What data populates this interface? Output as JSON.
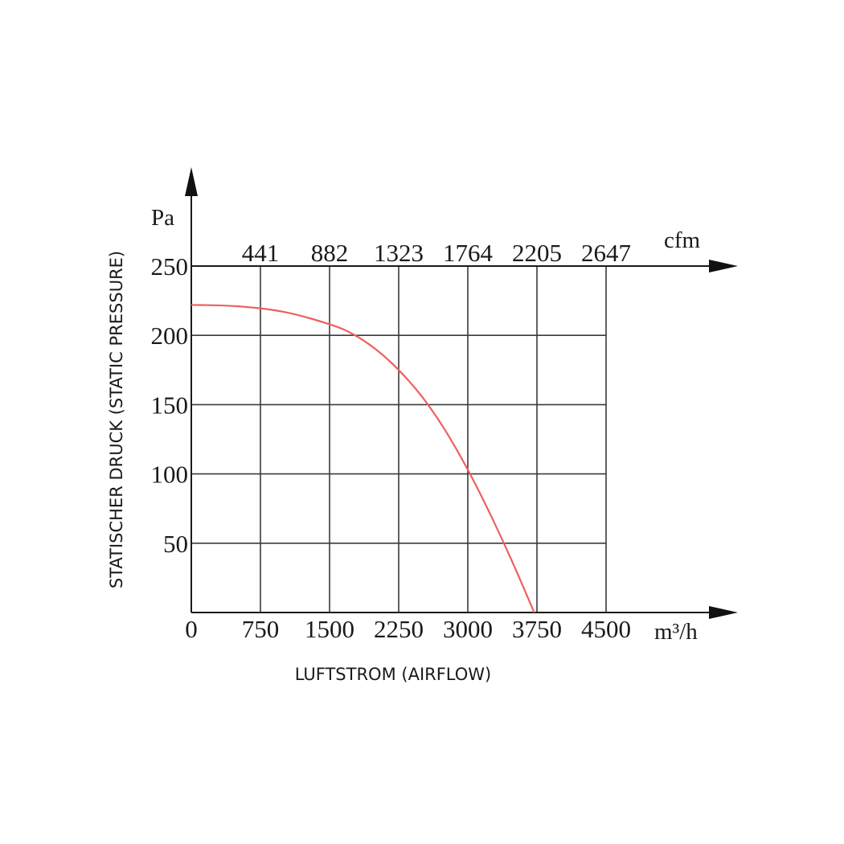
{
  "chart_data": {
    "type": "line",
    "title": "",
    "xlabel": "LUFTSTROM (AIRFLOW)",
    "ylabel": "STATISCHER DRUCK (STATIC PRESSURE)",
    "x_unit": "m³/h",
    "x2_unit": "cfm",
    "y_unit": "Pa",
    "xlim": [
      0,
      4500
    ],
    "ylim": [
      0,
      250
    ],
    "x_ticks": [
      "0",
      "750",
      "1500",
      "2250",
      "3000",
      "3750",
      "4500"
    ],
    "x2_ticks": [
      "441",
      "882",
      "1323",
      "1764",
      "2205",
      "2647"
    ],
    "y_ticks": [
      "250",
      "200",
      "150",
      "100",
      "50"
    ],
    "grid": true,
    "line_color": "#ee5f5f",
    "series": [
      {
        "x": [
          0,
          500,
          1000,
          1500,
          1750,
          2000,
          2250,
          2500,
          2750,
          3000,
          3250,
          3500,
          3720
        ],
        "y": [
          222,
          221,
          217,
          208,
          201,
          190,
          175,
          156,
          132,
          103,
          70,
          34,
          0
        ]
      }
    ]
  }
}
